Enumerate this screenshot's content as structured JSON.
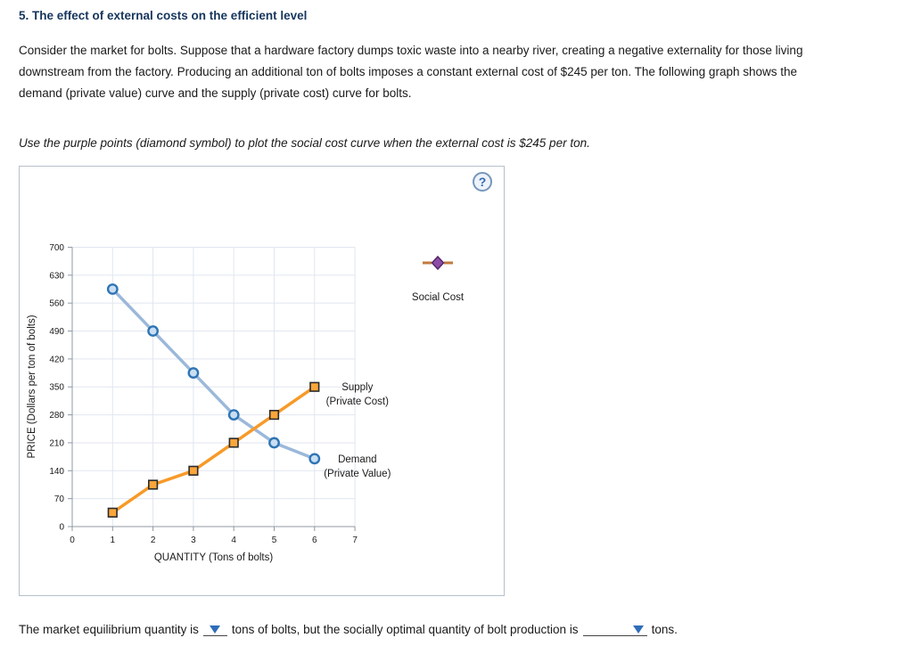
{
  "page": {
    "title": "5. The effect of external costs on the efficient level",
    "paragraph": "Consider the market for bolts. Suppose that a hardware factory dumps toxic waste into a nearby river, creating a negative externality for those living downstream from the factory. Producing an additional ton of bolts imposes a constant external cost of $245 per ton. The following graph shows the demand (private value) curve and the supply (private cost) curve for bolts.",
    "instruction": "Use the purple points (diamond symbol) to plot the social cost curve when the external cost is $245 per ton.",
    "help_icon": "?",
    "question": {
      "part1": "The market equilibrium quantity is",
      "part2": "tons of bolts, but the socially optimal quantity of bolt production is",
      "part3": "tons."
    }
  },
  "chart_data": {
    "type": "line",
    "title": "",
    "xlabel": "QUANTITY (Tons of bolts)",
    "ylabel": "PRICE (Dollars per ton of bolts)",
    "xlim": [
      0,
      7
    ],
    "ylim": [
      0,
      700
    ],
    "xticks": [
      0,
      1,
      2,
      3,
      4,
      5,
      6,
      7
    ],
    "yticks": [
      0,
      70,
      140,
      210,
      280,
      350,
      420,
      490,
      560,
      630,
      700
    ],
    "grid": true,
    "grid_color": "#e0e6f0",
    "axis_color": "#8f99a3",
    "external_cost_per_ton": 245,
    "series": [
      {
        "name": "Demand (Private Value)",
        "legend": [
          "Demand",
          "(Private Value)"
        ],
        "marker": "circle",
        "x": [
          1,
          2,
          3,
          4,
          5,
          6
        ],
        "y": [
          595,
          490,
          385,
          280,
          210,
          170
        ],
        "line_color": "#9BB8DA",
        "marker_fill": "#C9DEF2",
        "marker_stroke": "#2E74B5"
      },
      {
        "name": "Supply (Private Cost)",
        "legend": [
          "Supply",
          "(Private Cost)"
        ],
        "marker": "square",
        "x": [
          1,
          2,
          3,
          4,
          5,
          6
        ],
        "y": [
          35,
          105,
          140,
          210,
          280,
          350
        ],
        "line_color": "#F79A28",
        "marker_fill": "#FAA63B",
        "marker_stroke": "#2b2b2b"
      }
    ],
    "plot_tool": {
      "label": "Social Cost",
      "marker": "diamond",
      "fill": "#8E4DA4",
      "stroke": "#54276B",
      "stub_color": "#C17A3C"
    }
  }
}
